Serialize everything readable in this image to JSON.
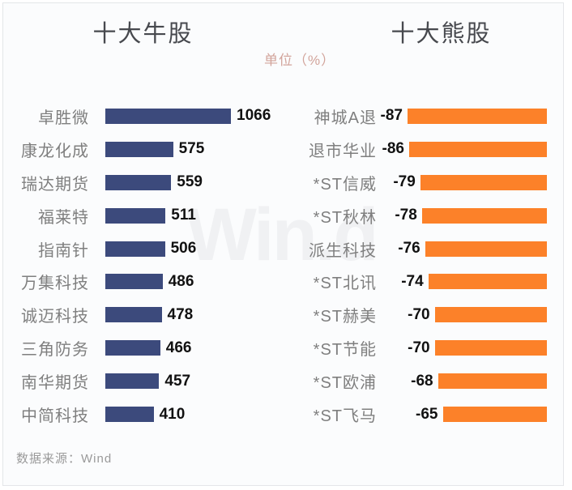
{
  "header": {
    "left_title": "十大牛股",
    "right_title": "十大熊股",
    "unit_label": "单位（%）"
  },
  "watermark": "Win.d",
  "footer": {
    "source": "数据来源：Wind"
  },
  "colors": {
    "bull_bar": "#3c4a7c",
    "bear_bar": "#fc8129",
    "title_text": "#47494e",
    "name_text": "#7f7f7f",
    "value_text": "#111111",
    "unit_text": "#d2a49b"
  },
  "chart_data": [
    {
      "type": "bar",
      "orientation": "horizontal",
      "title": "十大牛股",
      "unit": "%",
      "xlim": [
        0,
        1066
      ],
      "grid": false,
      "value_label_position": "right-of-bar",
      "bar_color": "#3c4a7c",
      "categories": [
        "卓胜微",
        "康龙化成",
        "瑞达期货",
        "福莱特",
        "指南针",
        "万集科技",
        "诚迈科技",
        "三角防务",
        "南华期货",
        "中简科技"
      ],
      "values": [
        1066,
        575,
        559,
        511,
        506,
        486,
        478,
        466,
        457,
        410
      ]
    },
    {
      "type": "bar",
      "orientation": "horizontal",
      "title": "十大熊股",
      "unit": "%",
      "xlim": [
        -87,
        0
      ],
      "grid": false,
      "value_label_position": "left-of-bar",
      "bar_color": "#fc8129",
      "categories": [
        "神城A退",
        "退市华业",
        "*ST信威",
        "*ST秋林",
        "派生科技",
        "*ST北讯",
        "*ST赫美",
        "*ST节能",
        "*ST欧浦",
        "*ST飞马"
      ],
      "values": [
        -87,
        -86,
        -79,
        -78,
        -76,
        -74,
        -70,
        -70,
        -68,
        -65
      ]
    }
  ]
}
